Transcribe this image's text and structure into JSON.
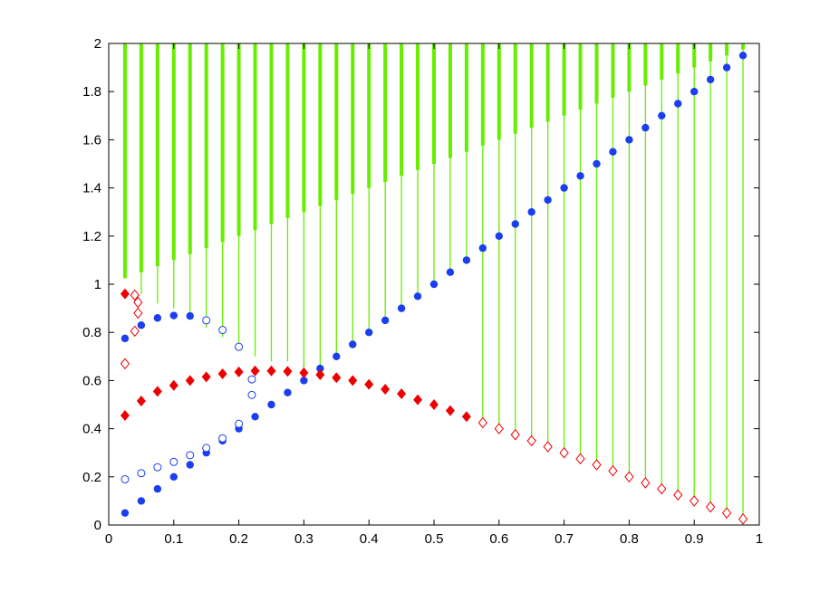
{
  "chart_data": {
    "type": "scatter",
    "title": "",
    "xlabel": "",
    "ylabel": "",
    "xlim": [
      0,
      1
    ],
    "ylim": [
      0,
      2
    ],
    "grid": false,
    "x_ticks": [
      "0",
      "0.1",
      "0.2",
      "0.3",
      "0.4",
      "0.5",
      "0.6",
      "0.7",
      "0.8",
      "0.9",
      "1"
    ],
    "y_ticks": [
      "0",
      "0.2",
      "0.4",
      "0.6",
      "0.8",
      "1",
      "1.2",
      "1.4",
      "1.6",
      "1.8",
      "2"
    ],
    "colors": {
      "blue": "#1a3ef0",
      "red": "#ee0000",
      "green": "#66ee00"
    },
    "series": [
      {
        "marker": "filled-circle",
        "color": "#1a3ef0",
        "points": [
          [
            0.025,
            0.05
          ],
          [
            0.05,
            0.1
          ],
          [
            0.075,
            0.15
          ],
          [
            0.1,
            0.2
          ],
          [
            0.125,
            0.25
          ],
          [
            0.15,
            0.3
          ],
          [
            0.175,
            0.35
          ],
          [
            0.2,
            0.4
          ],
          [
            0.225,
            0.45
          ],
          [
            0.25,
            0.5
          ],
          [
            0.275,
            0.55
          ],
          [
            0.3,
            0.6
          ],
          [
            0.325,
            0.65
          ],
          [
            0.35,
            0.7
          ],
          [
            0.375,
            0.75
          ],
          [
            0.4,
            0.8
          ],
          [
            0.425,
            0.85
          ],
          [
            0.45,
            0.9
          ],
          [
            0.475,
            0.95
          ],
          [
            0.5,
            1.0
          ],
          [
            0.525,
            1.05
          ],
          [
            0.55,
            1.1
          ],
          [
            0.575,
            1.15
          ],
          [
            0.6,
            1.2
          ],
          [
            0.625,
            1.25
          ],
          [
            0.65,
            1.3
          ],
          [
            0.675,
            1.35
          ],
          [
            0.7,
            1.4
          ],
          [
            0.725,
            1.45
          ],
          [
            0.75,
            1.5
          ],
          [
            0.775,
            1.55
          ],
          [
            0.8,
            1.6
          ],
          [
            0.825,
            1.65
          ],
          [
            0.85,
            1.7
          ],
          [
            0.875,
            1.75
          ],
          [
            0.9,
            1.8
          ],
          [
            0.925,
            1.85
          ],
          [
            0.95,
            1.9
          ],
          [
            0.975,
            1.95
          ],
          [
            0.025,
            0.775
          ],
          [
            0.05,
            0.83
          ],
          [
            0.075,
            0.86
          ],
          [
            0.1,
            0.87
          ],
          [
            0.125,
            0.868
          ]
        ]
      },
      {
        "marker": "open-circle",
        "color": "#1a3ef0",
        "points": [
          [
            0.025,
            0.19
          ],
          [
            0.05,
            0.215
          ],
          [
            0.075,
            0.24
          ],
          [
            0.1,
            0.262
          ],
          [
            0.125,
            0.29
          ],
          [
            0.15,
            0.32
          ],
          [
            0.175,
            0.36
          ],
          [
            0.2,
            0.42
          ],
          [
            0.15,
            0.85
          ],
          [
            0.175,
            0.81
          ],
          [
            0.2,
            0.74
          ],
          [
            0.22,
            0.605
          ],
          [
            0.22,
            0.54
          ]
        ]
      },
      {
        "marker": "filled-diamond",
        "color": "#ee0000",
        "points": [
          [
            0.025,
            0.96
          ],
          [
            0.025,
            0.455
          ],
          [
            0.05,
            0.515
          ],
          [
            0.075,
            0.555
          ],
          [
            0.1,
            0.58
          ],
          [
            0.125,
            0.6
          ],
          [
            0.15,
            0.615
          ],
          [
            0.175,
            0.628
          ],
          [
            0.2,
            0.636
          ],
          [
            0.225,
            0.64
          ],
          [
            0.25,
            0.64
          ],
          [
            0.275,
            0.638
          ],
          [
            0.3,
            0.632
          ],
          [
            0.325,
            0.624
          ],
          [
            0.35,
            0.612
          ],
          [
            0.375,
            0.6
          ],
          [
            0.4,
            0.584
          ],
          [
            0.425,
            0.564
          ],
          [
            0.45,
            0.545
          ],
          [
            0.475,
            0.52
          ],
          [
            0.5,
            0.5
          ],
          [
            0.525,
            0.475
          ],
          [
            0.55,
            0.45
          ]
        ]
      },
      {
        "marker": "open-diamond",
        "color": "#ee0000",
        "points": [
          [
            0.04,
            0.955
          ],
          [
            0.045,
            0.925
          ],
          [
            0.045,
            0.88
          ],
          [
            0.04,
            0.805
          ],
          [
            0.025,
            0.67
          ],
          [
            0.575,
            0.425
          ],
          [
            0.6,
            0.4
          ],
          [
            0.625,
            0.375
          ],
          [
            0.65,
            0.35
          ],
          [
            0.675,
            0.325
          ],
          [
            0.7,
            0.3
          ],
          [
            0.725,
            0.275
          ],
          [
            0.75,
            0.25
          ],
          [
            0.775,
            0.225
          ],
          [
            0.8,
            0.2
          ],
          [
            0.825,
            0.175
          ],
          [
            0.85,
            0.15
          ],
          [
            0.875,
            0.125
          ],
          [
            0.9,
            0.1
          ],
          [
            0.925,
            0.075
          ],
          [
            0.95,
            0.05
          ],
          [
            0.975,
            0.025
          ]
        ]
      },
      {
        "marker": "vertical-bar",
        "color": "#66ee00",
        "note_values": "each entry is [x, thick_bottom_y, thin_bottom_y]",
        "bars": [
          [
            0.025,
            1.025,
            1.025
          ],
          [
            0.05,
            1.05,
            0.96
          ],
          [
            0.075,
            1.075,
            0.92
          ],
          [
            0.1,
            1.1,
            0.9
          ],
          [
            0.125,
            1.125,
            0.86
          ],
          [
            0.15,
            1.15,
            0.82
          ],
          [
            0.175,
            1.175,
            0.78
          ],
          [
            0.2,
            1.2,
            0.74
          ],
          [
            0.225,
            1.225,
            0.7
          ],
          [
            0.25,
            1.25,
            0.68
          ],
          [
            0.275,
            1.275,
            0.68
          ],
          [
            0.3,
            1.3,
            0.6
          ],
          [
            0.325,
            1.325,
            0.65
          ],
          [
            0.35,
            1.35,
            0.7
          ],
          [
            0.375,
            1.375,
            0.75
          ],
          [
            0.4,
            1.4,
            0.8
          ],
          [
            0.425,
            1.425,
            0.85
          ],
          [
            0.45,
            1.45,
            0.9
          ],
          [
            0.475,
            1.475,
            0.95
          ],
          [
            0.5,
            1.5,
            1.0
          ],
          [
            0.525,
            1.525,
            1.05
          ],
          [
            0.55,
            1.55,
            1.1
          ],
          [
            0.575,
            1.575,
            0.43
          ],
          [
            0.6,
            1.6,
            0.4
          ],
          [
            0.625,
            1.625,
            0.375
          ],
          [
            0.65,
            1.65,
            0.35
          ],
          [
            0.675,
            1.675,
            0.325
          ],
          [
            0.7,
            1.7,
            0.3
          ],
          [
            0.725,
            1.725,
            0.275
          ],
          [
            0.75,
            1.75,
            0.25
          ],
          [
            0.775,
            1.775,
            0.225
          ],
          [
            0.8,
            1.8,
            0.2
          ],
          [
            0.825,
            1.825,
            0.175
          ],
          [
            0.85,
            1.85,
            0.15
          ],
          [
            0.875,
            1.875,
            0.125
          ],
          [
            0.9,
            1.9,
            0.1
          ],
          [
            0.925,
            1.925,
            0.075
          ],
          [
            0.95,
            1.95,
            0.05
          ],
          [
            0.975,
            1.975,
            0.025
          ]
        ]
      }
    ]
  }
}
